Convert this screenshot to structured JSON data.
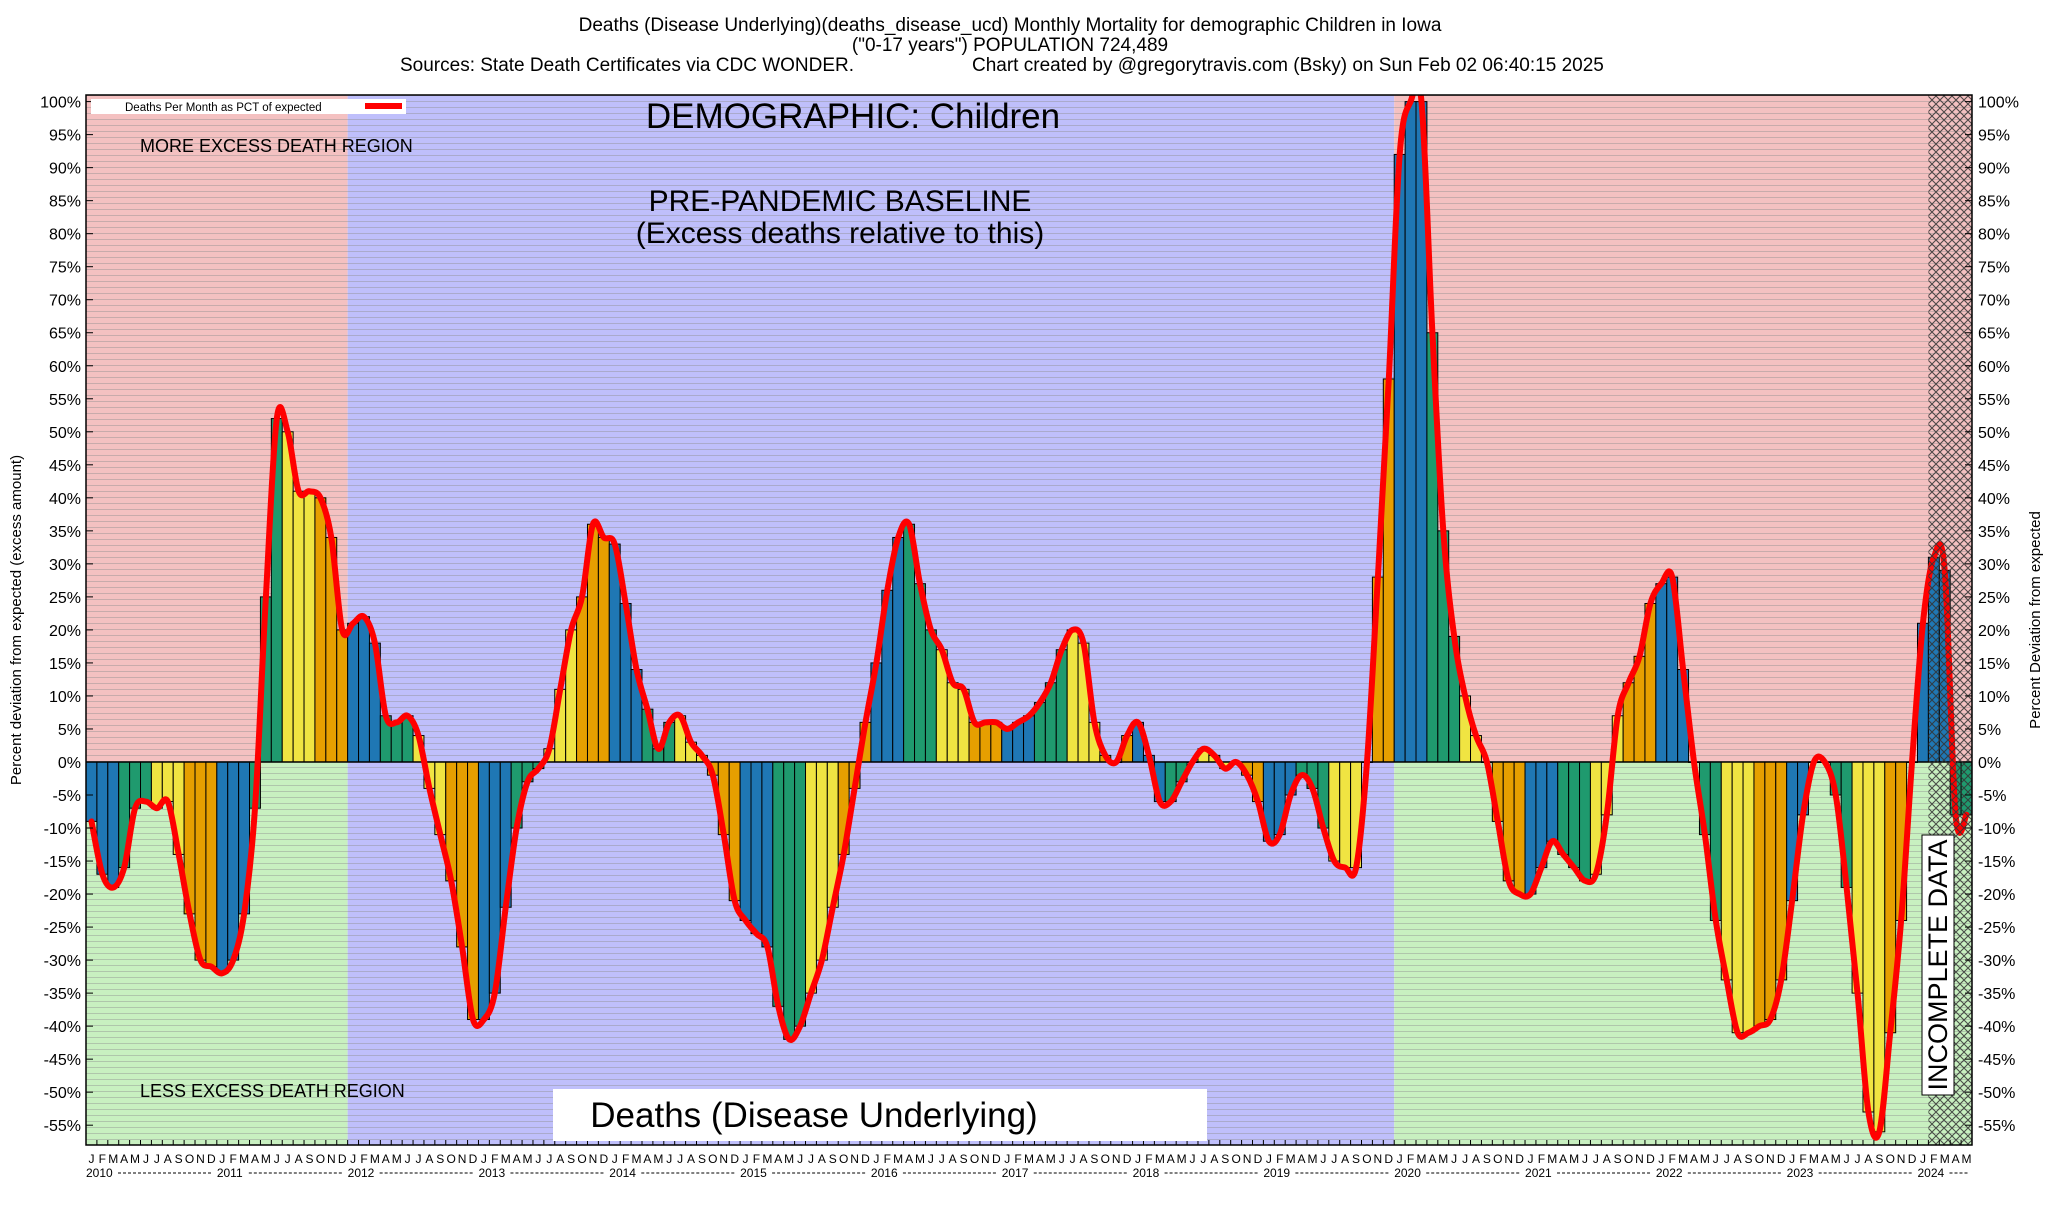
{
  "header": {
    "title_line1": "Deaths (Disease Underlying)(deaths_disease_ucd) Monthly Mortality for demographic Children in Iowa",
    "title_line2": "(\"0-17 years\") POPULATION 724,489",
    "title_line3a": "Sources: State Death Certificates via CDC WONDER.",
    "title_line3b": "Chart created by @gregorytravis.com (Bsky) on Sun Feb 02 06:40:15 2025"
  },
  "labels": {
    "legend": "Deaths Per Month as PCT of expected",
    "demographic": "DEMOGRAPHIC: Children",
    "baseline_line1": "PRE-PANDEMIC BASELINE",
    "baseline_line2": "(Excess deaths relative to this)",
    "more_excess": "MORE EXCESS DEATH REGION",
    "less_excess": "LESS EXCESS DEATH REGION",
    "footer_title": "Deaths (Disease Underlying)",
    "incomplete": "INCOMPLETE DATA",
    "ylabel_left": "Percent deviation from expected (excess amount)",
    "ylabel_right": "Percent Deviation from expected"
  },
  "colors": {
    "excess_region": "#f4c1c1",
    "less_region": "#c8f0c0",
    "baseline_region": "#bfbffb",
    "line": "#ff0000",
    "bar_colors": [
      "#1f77b4",
      "#1f9a6e",
      "#f0e442",
      "#e69f00"
    ]
  },
  "chart_data": {
    "type": "bar",
    "title": "Deaths (Disease Underlying)(deaths_disease_ucd) Monthly Mortality for demographic Children in Iowa",
    "xlabel": "",
    "ylabel": "Percent deviation from expected (excess amount)",
    "ylim": [
      -58,
      101
    ],
    "yticks": [
      100,
      95,
      90,
      85,
      80,
      75,
      70,
      65,
      60,
      55,
      50,
      45,
      40,
      35,
      30,
      25,
      20,
      15,
      10,
      5,
      0,
      -5,
      -10,
      -15,
      -20,
      -25,
      -30,
      -35,
      -40,
      -45,
      -50,
      -55
    ],
    "month_letters": [
      "J",
      "F",
      "M",
      "A",
      "M",
      "J",
      "J",
      "A",
      "S",
      "O",
      "N",
      "D"
    ],
    "years": [
      "2010",
      "2011",
      "2012",
      "2013",
      "2014",
      "2015",
      "2016",
      "2017",
      "2018",
      "2019",
      "2020",
      "2021",
      "2022",
      "2023",
      "2024"
    ],
    "baseline_years": [
      "2012",
      "2013",
      "2014",
      "2015",
      "2016",
      "2017",
      "2018",
      "2019"
    ],
    "incomplete_from": "2024 Feb",
    "series": [
      {
        "name": "Deaths Per Month as PCT of expected",
        "values": [
          -9,
          -17,
          -19,
          -16,
          -7,
          -6,
          -7,
          -6,
          -14,
          -23,
          -30,
          -31,
          -32,
          -30,
          -23,
          -7,
          25,
          52,
          50,
          41,
          41,
          40,
          34,
          20,
          21,
          22,
          18,
          7,
          6,
          7,
          4,
          -4,
          -11,
          -18,
          -28,
          -39,
          -39,
          -35,
          -22,
          -10,
          -3,
          -1,
          2,
          11,
          20,
          25,
          36,
          34,
          33,
          24,
          14,
          8,
          2,
          6,
          7,
          3,
          1,
          -2,
          -11,
          -21,
          -24,
          -26,
          -28,
          -37,
          -42,
          -40,
          -35,
          -30,
          -22,
          -14,
          -4,
          6,
          15,
          26,
          34,
          36,
          27,
          20,
          17,
          12,
          11,
          6,
          6,
          6,
          5,
          6,
          7,
          9,
          12,
          17,
          20,
          18,
          6,
          1,
          0,
          4,
          6,
          1,
          -6,
          -6,
          -3,
          0,
          2,
          1,
          -1,
          0,
          -2,
          -6,
          -12,
          -11,
          -5,
          -2,
          -4,
          -10,
          -15,
          -16,
          -16,
          0,
          28,
          58,
          92,
          100,
          100,
          65,
          35,
          19,
          10,
          4,
          0,
          -9,
          -18,
          -20,
          -20,
          -16,
          -12,
          -14,
          -16,
          -18,
          -17,
          -8,
          7,
          12,
          16,
          24,
          27,
          28,
          14,
          0,
          -11,
          -24,
          -33,
          -41,
          -41,
          -40,
          -39,
          -33,
          -21,
          -8,
          0,
          0,
          -5,
          -19,
          -35,
          -53,
          -56,
          -41,
          -24,
          0,
          21,
          31,
          29,
          -8,
          -8
        ]
      }
    ]
  }
}
